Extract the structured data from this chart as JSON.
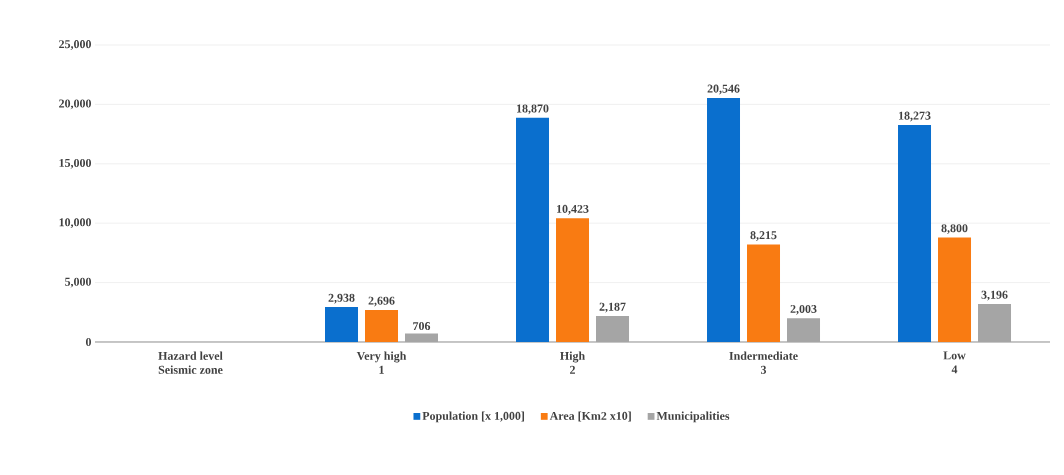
{
  "chart_data": {
    "type": "bar",
    "categories": [
      "Hazard level\nSeismic zone",
      "Very high\n1",
      "High\n2",
      "Indermediate\n3",
      "Low\n4"
    ],
    "series": [
      {
        "name": "Population [x 1,000]",
        "color": "#0a6fce",
        "values": [
          null,
          2938,
          18870,
          20546,
          18273
        ],
        "value_labels": [
          null,
          "2,938",
          "18,870",
          "20,546",
          "18,273"
        ]
      },
      {
        "name": "Area [Km2 x10]",
        "color": "#f97b12",
        "values": [
          null,
          2696,
          10423,
          8215,
          8800
        ],
        "value_labels": [
          null,
          "2,696",
          "10,423",
          "8,215",
          "8,800"
        ]
      },
      {
        "name": "Municipalities",
        "color": "#a5a5a5",
        "values": [
          null,
          706,
          2187,
          2003,
          3196
        ],
        "value_labels": [
          null,
          "706",
          "2,187",
          "2,003",
          "3,196"
        ]
      }
    ],
    "ylim": [
      0,
      25000
    ],
    "yticks": [
      {
        "value": 0,
        "label": "0"
      },
      {
        "value": 5000,
        "label": "5,000"
      },
      {
        "value": 10000,
        "label": "10,000"
      },
      {
        "value": 15000,
        "label": "15,000"
      },
      {
        "value": 20000,
        "label": "20,000"
      },
      {
        "value": 25000,
        "label": "25,000"
      }
    ],
    "grid": "y",
    "legend": "bottom"
  }
}
